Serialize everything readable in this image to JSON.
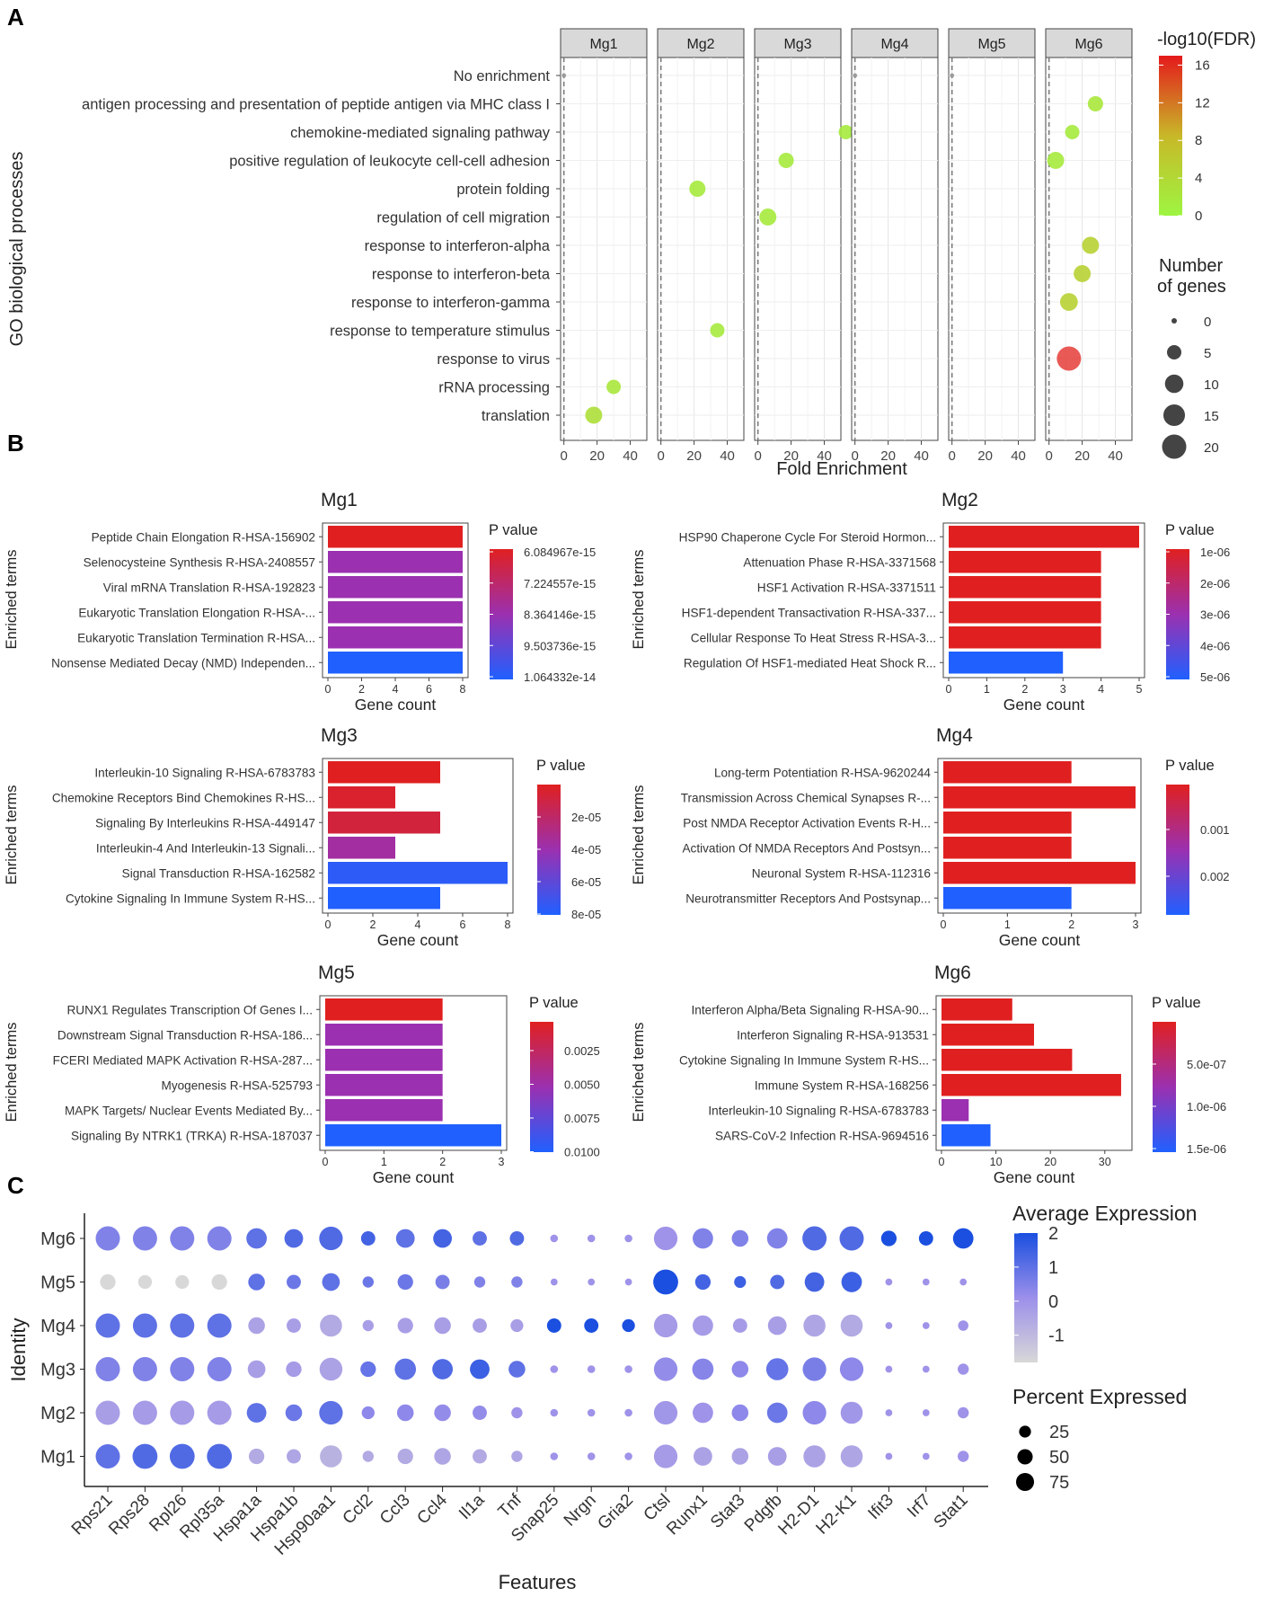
{
  "panel_labels": [
    "A",
    "B",
    "C"
  ],
  "colors": {
    "bar_high": "#e02020",
    "bar_mid": "#9b30b0",
    "bar_low": "#2060ff",
    "panel_bg": "#ffffff",
    "strip_bg": "#d9d9d9",
    "grid": "#ebebeb",
    "dot_low": "#d8d8d8",
    "dot_high": "#1a4fe0",
    "fdr_low": "#9ef542",
    "fdr_high": "#e41a1c"
  },
  "chart_data": [
    {
      "id": "A",
      "type": "scatter",
      "title": "",
      "xlabel": "Fold Enrichment",
      "ylabel": "GO biological processes",
      "facets": [
        "Mg1",
        "Mg2",
        "Mg3",
        "Mg4",
        "Mg5",
        "Mg6"
      ],
      "xlim": [
        -2,
        50
      ],
      "xticks": [
        0,
        20,
        40
      ],
      "categories": [
        "No enrichment",
        "antigen processing and presentation of peptide antigen via MHC class I",
        "chemokine-mediated signaling pathway",
        "positive regulation of leukocyte cell-cell adhesion",
        "protein folding",
        "regulation of cell migration",
        "response to interferon-alpha",
        "response to interferon-beta",
        "response to interferon-gamma",
        "response to temperature stimulus",
        "response to virus",
        "rRNA processing",
        "translation"
      ],
      "legend_color": {
        "title": "-log10(FDR)",
        "ticks": [
          "16",
          "12",
          "8",
          "4",
          "0"
        ],
        "range": [
          0,
          17
        ]
      },
      "legend_size": {
        "title_line1": "Number",
        "title_line2": "of genes",
        "values": [
          0,
          5,
          10,
          15,
          20
        ],
        "labels": [
          "0",
          "5",
          "10",
          "15",
          "20"
        ]
      },
      "points": [
        {
          "facet": "Mg1",
          "term": "No enrichment",
          "x": 0,
          "fdr": 0,
          "genes": 0
        },
        {
          "facet": "Mg1",
          "term": "rRNA processing",
          "x": 30,
          "fdr": 2,
          "genes": 5
        },
        {
          "facet": "Mg1",
          "term": "translation",
          "x": 18,
          "fdr": 3,
          "genes": 8
        },
        {
          "facet": "Mg2",
          "term": "protein folding",
          "x": 22,
          "fdr": 1.5,
          "genes": 7
        },
        {
          "facet": "Mg2",
          "term": "response to temperature stimulus",
          "x": 34,
          "fdr": 1.5,
          "genes": 5
        },
        {
          "facet": "Mg3",
          "term": "chemokine-mediated signaling pathway",
          "x": 53,
          "fdr": 1.5,
          "genes": 5
        },
        {
          "facet": "Mg3",
          "term": "positive regulation of leukocyte cell-cell adhesion",
          "x": 17,
          "fdr": 1.5,
          "genes": 6
        },
        {
          "facet": "Mg3",
          "term": "regulation of cell migration",
          "x": 6,
          "fdr": 1.5,
          "genes": 8
        },
        {
          "facet": "Mg4",
          "term": "No enrichment",
          "x": 0,
          "fdr": 0,
          "genes": 0
        },
        {
          "facet": "Mg5",
          "term": "No enrichment",
          "x": 0,
          "fdr": 0,
          "genes": 0
        },
        {
          "facet": "Mg6",
          "term": "antigen processing and presentation of peptide antigen via MHC class I",
          "x": 28,
          "fdr": 2,
          "genes": 6
        },
        {
          "facet": "Mg6",
          "term": "chemokine-mediated signaling pathway",
          "x": 14,
          "fdr": 1.5,
          "genes": 5
        },
        {
          "facet": "Mg6",
          "term": "positive regulation of leukocyte cell-cell adhesion",
          "x": 4,
          "fdr": 1.5,
          "genes": 8
        },
        {
          "facet": "Mg6",
          "term": "response to interferon-alpha",
          "x": 25,
          "fdr": 5,
          "genes": 8
        },
        {
          "facet": "Mg6",
          "term": "response to interferon-beta",
          "x": 20,
          "fdr": 5,
          "genes": 8
        },
        {
          "facet": "Mg6",
          "term": "response to interferon-gamma",
          "x": 12,
          "fdr": 5,
          "genes": 9
        },
        {
          "facet": "Mg6",
          "term": "response to virus",
          "x": 12,
          "fdr": 16.5,
          "genes": 20
        }
      ]
    },
    {
      "id": "B",
      "type": "bar",
      "orientation": "horizontal",
      "xlabel": "Gene count",
      "ylabel": "Enriched terms",
      "legend_title": "P value",
      "panels": [
        {
          "title": "Mg1",
          "xlim": [
            0,
            8
          ],
          "xticks": [
            0,
            2,
            4,
            6,
            8
          ],
          "categories": [
            "Peptide Chain Elongation R-HSA-156902",
            "Selenocysteine Synthesis R-HSA-2408557",
            "Viral mRNA Translation R-HSA-192823",
            "Eukaryotic Translation Elongation R-HSA-...",
            "Eukaryotic Translation Termination R-HSA...",
            "Nonsense Mediated Decay (NMD) Independen..."
          ],
          "values": [
            8,
            8,
            8,
            8,
            8,
            8
          ],
          "color_level": [
            0,
            0.5,
            0.5,
            0.5,
            0.5,
            1
          ],
          "legend_ticks": [
            "6.084967e-15",
            "7.224557e-15",
            "8.364146e-15",
            "9.503736e-15",
            "1.064332e-14"
          ]
        },
        {
          "title": "Mg2",
          "xlim": [
            0,
            5
          ],
          "xticks": [
            0,
            1,
            2,
            3,
            4,
            5
          ],
          "categories": [
            "HSP90 Chaperone Cycle For Steroid Hormon...",
            "Attenuation Phase R-HSA-3371568",
            "HSF1 Activation R-HSA-3371511",
            "HSF1-dependent Transactivation R-HSA-337...",
            "Cellular Response To Heat Stress R-HSA-3...",
            "Regulation Of HSF1-mediated Heat Shock R..."
          ],
          "values": [
            5,
            4,
            4,
            4,
            4,
            3
          ],
          "color_level": [
            0,
            0,
            0,
            0,
            0,
            1
          ],
          "legend_ticks": [
            "1e-06",
            "2e-06",
            "3e-06",
            "4e-06",
            "5e-06"
          ]
        },
        {
          "title": "Mg3",
          "xlim": [
            0,
            8
          ],
          "xticks": [
            0,
            2,
            4,
            6,
            8
          ],
          "categories": [
            "Interleukin-10 Signaling R-HSA-6783783",
            "Chemokine Receptors Bind Chemokines R-HS...",
            "Signaling By Interleukins R-HSA-449147",
            "Interleukin-4 And Interleukin-13 Signali...",
            "Signal Transduction R-HSA-162582",
            "Cytokine Signaling In Immune System R-HS..."
          ],
          "values": [
            5,
            3,
            5,
            3,
            8,
            5
          ],
          "color_level": [
            0,
            0.05,
            0.1,
            0.45,
            0.95,
            1
          ],
          "legend_ticks": [
            "2e-05",
            "4e-05",
            "6e-05",
            "8e-05"
          ]
        },
        {
          "title": "Mg4",
          "xlim": [
            0,
            3
          ],
          "xticks": [
            0,
            1,
            2,
            3
          ],
          "categories": [
            "Long-term Potentiation R-HSA-9620244",
            "Transmission Across Chemical Synapses R-...",
            "Post NMDA Receptor Activation Events R-H...",
            "Activation Of NMDA Receptors And Postsyn...",
            "Neuronal System R-HSA-112316",
            "Neurotransmitter Receptors And Postsynap..."
          ],
          "values": [
            2,
            3,
            2,
            2,
            3,
            2
          ],
          "color_level": [
            0,
            0,
            0,
            0,
            0,
            1
          ],
          "legend_ticks": [
            "0.001",
            "0.002"
          ]
        },
        {
          "title": "Mg5",
          "xlim": [
            0,
            3
          ],
          "xticks": [
            0,
            1,
            2,
            3
          ],
          "categories": [
            "RUNX1 Regulates Transcription Of Genes I...",
            "Downstream Signal Transduction R-HSA-186...",
            "FCERI Mediated MAPK Activation R-HSA-287...",
            "Myogenesis R-HSA-525793",
            "MAPK Targets/ Nuclear Events Mediated By...",
            "Signaling By NTRK1 (TRKA) R-HSA-187037"
          ],
          "values": [
            2,
            2,
            2,
            2,
            2,
            3
          ],
          "color_level": [
            0,
            0.5,
            0.5,
            0.5,
            0.5,
            1
          ],
          "legend_ticks": [
            "0.0025",
            "0.0050",
            "0.0075",
            "0.0100"
          ]
        },
        {
          "title": "Mg6",
          "xlim": [
            0,
            34
          ],
          "xticks": [
            0,
            10,
            20,
            30
          ],
          "categories": [
            "Interferon Alpha/Beta Signaling R-HSA-90...",
            "Interferon Signaling R-HSA-913531",
            "Cytokine Signaling In Immune System R-HS...",
            "Immune System R-HSA-168256",
            "Interleukin-10 Signaling R-HSA-6783783",
            "SARS-CoV-2 Infection R-HSA-9694516"
          ],
          "values": [
            13,
            17,
            24,
            33,
            5,
            9
          ],
          "color_level": [
            0,
            0,
            0,
            0,
            0.5,
            1
          ],
          "legend_ticks": [
            "5.0e-07",
            "1.0e-06",
            "1.5e-06"
          ]
        }
      ]
    },
    {
      "id": "C",
      "type": "scatter",
      "subtype": "dotplot",
      "xlabel": "Features",
      "ylabel": "Identity",
      "features": [
        "Rps21",
        "Rps28",
        "Rpl26",
        "Rpl35a",
        "Hspa1a",
        "Hspa1b",
        "Hsp90aa1",
        "Ccl2",
        "Ccl3",
        "Ccl4",
        "Il1a",
        "Tnf",
        "Snap25",
        "Nrgn",
        "Gria2",
        "Ctsl",
        "Runx1",
        "Stat3",
        "Pdgfb",
        "H2-D1",
        "H2-K1",
        "Ifit3",
        "Irf7",
        "Stat1"
      ],
      "identities": [
        "Mg6",
        "Mg5",
        "Mg4",
        "Mg3",
        "Mg2",
        "Mg1"
      ],
      "legend_color": {
        "title": "Average Expression",
        "ticks": [
          "2",
          "1",
          "0",
          "-1"
        ],
        "range": [
          -1.8,
          2
        ]
      },
      "legend_size": {
        "title": "Percent Expressed",
        "values": [
          25,
          50,
          75
        ],
        "labels": [
          "25",
          "50",
          "75"
        ]
      },
      "avg_expression": {
        "Mg6": [
          0.5,
          0.5,
          0.5,
          0.5,
          1.0,
          1.2,
          1.2,
          1.4,
          1.0,
          1.4,
          1.0,
          1.2,
          0.0,
          0.0,
          0.0,
          0.0,
          0.5,
          0.5,
          0.5,
          1.2,
          1.2,
          2.0,
          2.0,
          2.0
        ],
        "Mg5": [
          -1.8,
          -1.8,
          -1.8,
          -1.8,
          1.0,
          0.8,
          1.0,
          0.8,
          0.8,
          0.6,
          0.5,
          0.5,
          0.0,
          0.0,
          0.0,
          2.0,
          1.4,
          1.5,
          1.2,
          1.4,
          1.5,
          0.0,
          0.0,
          0.0
        ],
        "Mg4": [
          1.0,
          1.0,
          1.0,
          1.0,
          -0.4,
          -0.3,
          -0.6,
          -0.3,
          -0.3,
          -0.3,
          -0.3,
          -0.3,
          2.0,
          2.0,
          2.0,
          -0.2,
          -0.2,
          -0.2,
          -0.3,
          -0.5,
          -0.6,
          0.0,
          0.0,
          0.0
        ],
        "Mg3": [
          0.5,
          0.5,
          0.5,
          0.5,
          -0.3,
          -0.2,
          -0.4,
          0.9,
          1.0,
          1.2,
          1.5,
          1.0,
          0.0,
          0.0,
          0.0,
          0.2,
          0.4,
          0.3,
          0.9,
          0.6,
          0.3,
          0.0,
          0.0,
          0.0
        ],
        "Mg2": [
          -0.3,
          -0.2,
          -0.2,
          -0.2,
          1.0,
          0.8,
          1.0,
          0.3,
          0.3,
          0.2,
          0.2,
          0.0,
          0.0,
          0.0,
          0.0,
          -0.1,
          0.0,
          0.3,
          0.8,
          0.3,
          -0.1,
          0.0,
          0.0,
          0.0
        ],
        "Mg1": [
          1.0,
          1.2,
          1.2,
          1.2,
          -0.6,
          -0.5,
          -0.8,
          -0.6,
          -0.6,
          -0.5,
          -0.6,
          -0.5,
          0.0,
          0.0,
          0.0,
          -0.2,
          -0.4,
          -0.4,
          -0.3,
          -0.4,
          -0.5,
          0.0,
          0.0,
          0.0
        ]
      },
      "pct_expressed": {
        "Mg6": [
          75,
          75,
          75,
          75,
          50,
          40,
          70,
          20,
          40,
          40,
          20,
          20,
          3,
          3,
          3,
          70,
          50,
          30,
          50,
          75,
          75,
          25,
          20,
          50
        ],
        "Mg5": [
          25,
          18,
          18,
          25,
          30,
          20,
          35,
          10,
          25,
          20,
          10,
          10,
          2,
          2,
          2,
          80,
          25,
          12,
          20,
          45,
          50,
          2,
          2,
          2
        ],
        "Mg4": [
          75,
          75,
          75,
          75,
          30,
          20,
          60,
          10,
          25,
          30,
          20,
          15,
          20,
          20,
          15,
          70,
          50,
          20,
          40,
          60,
          60,
          2,
          2,
          8
        ],
        "Mg3": [
          75,
          75,
          75,
          75,
          35,
          25,
          65,
          25,
          55,
          50,
          45,
          30,
          3,
          3,
          3,
          70,
          55,
          30,
          60,
          70,
          70,
          2,
          2,
          10
        ],
        "Mg2": [
          75,
          75,
          75,
          75,
          45,
          30,
          70,
          15,
          30,
          30,
          20,
          10,
          3,
          3,
          3,
          70,
          50,
          30,
          50,
          70,
          60,
          2,
          2,
          10
        ],
        "Mg1": [
          75,
          80,
          80,
          80,
          25,
          20,
          60,
          10,
          25,
          30,
          20,
          10,
          3,
          3,
          3,
          70,
          40,
          30,
          40,
          60,
          60,
          2,
          2,
          10
        ]
      }
    }
  ]
}
